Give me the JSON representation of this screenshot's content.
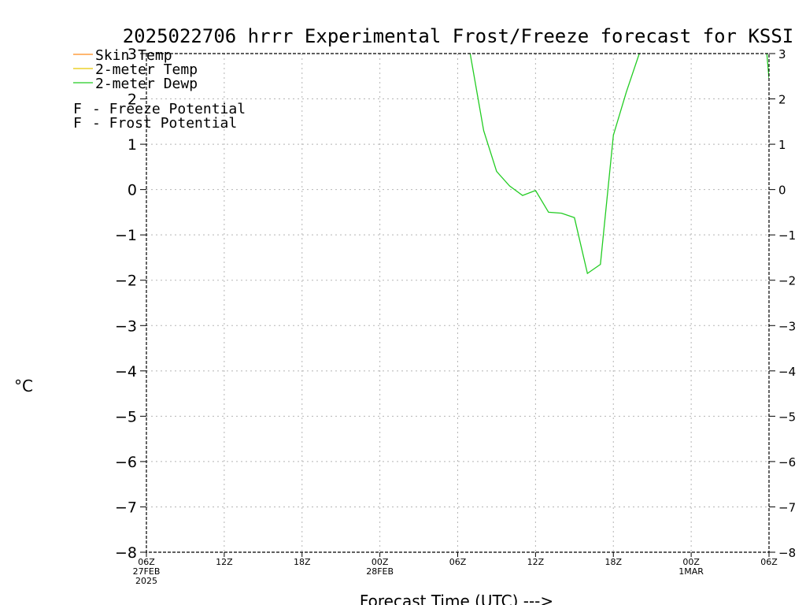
{
  "chart_data": {
    "type": "line",
    "title": "2025022706 hrrr Experimental Frost/Freeze forecast for KSSI",
    "xlabel": "Forecast Time (UTC) --->",
    "ylabel": "°C",
    "ylim": [
      -8,
      3
    ],
    "yticks": [
      -8,
      -7,
      -6,
      -5,
      -4,
      -3,
      -2,
      -1,
      0,
      1,
      2,
      3
    ],
    "x_range_hours": [
      0,
      48
    ],
    "x_ticks": [
      {
        "hour": 0,
        "line1": "06Z",
        "line2": "27FEB",
        "line3": "2025"
      },
      {
        "hour": 6,
        "line1": "12Z",
        "line2": "",
        "line3": ""
      },
      {
        "hour": 12,
        "line1": "18Z",
        "line2": "",
        "line3": ""
      },
      {
        "hour": 18,
        "line1": "00Z",
        "line2": "28FEB",
        "line3": ""
      },
      {
        "hour": 24,
        "line1": "06Z",
        "line2": "",
        "line3": ""
      },
      {
        "hour": 30,
        "line1": "12Z",
        "line2": "",
        "line3": ""
      },
      {
        "hour": 36,
        "line1": "18Z",
        "line2": "",
        "line3": ""
      },
      {
        "hour": 42,
        "line1": "00Z",
        "line2": "1MAR",
        "line3": ""
      },
      {
        "hour": 48,
        "line1": "06Z",
        "line2": "",
        "line3": ""
      }
    ],
    "grid": true,
    "legend_position": "top-left",
    "legend": [
      {
        "label": "Skin Temp",
        "color": "#ff8c1a"
      },
      {
        "label": "2-meter Temp",
        "color": "#e6c800"
      },
      {
        "label": "2-meter Dewp",
        "color": "#22cc22"
      }
    ],
    "potential_legend": [
      {
        "marker": "F",
        "text": "- Freeze Potential",
        "color": "#cc2299"
      },
      {
        "marker": "F",
        "text": "- Frost Potential",
        "color": "#3333ee"
      }
    ],
    "series": [
      {
        "name": "2-meter Dewp",
        "color": "#22cc22",
        "segments": [
          [
            [
              24.9,
              3.1
            ],
            [
              26,
              1.3
            ],
            [
              27,
              0.4
            ],
            [
              28,
              0.08
            ],
            [
              29,
              -0.13
            ],
            [
              30,
              -0.02
            ],
            [
              31,
              -0.5
            ],
            [
              32,
              -0.52
            ],
            [
              33,
              -0.62
            ],
            [
              34,
              -1.85
            ],
            [
              35,
              -1.65
            ],
            [
              36,
              1.2
            ],
            [
              37,
              2.15
            ],
            [
              38,
              3.0
            ],
            [
              38.1,
              3.1
            ]
          ],
          [
            [
              47.8,
              3.1
            ],
            [
              48,
              2.45
            ]
          ]
        ]
      }
    ]
  }
}
